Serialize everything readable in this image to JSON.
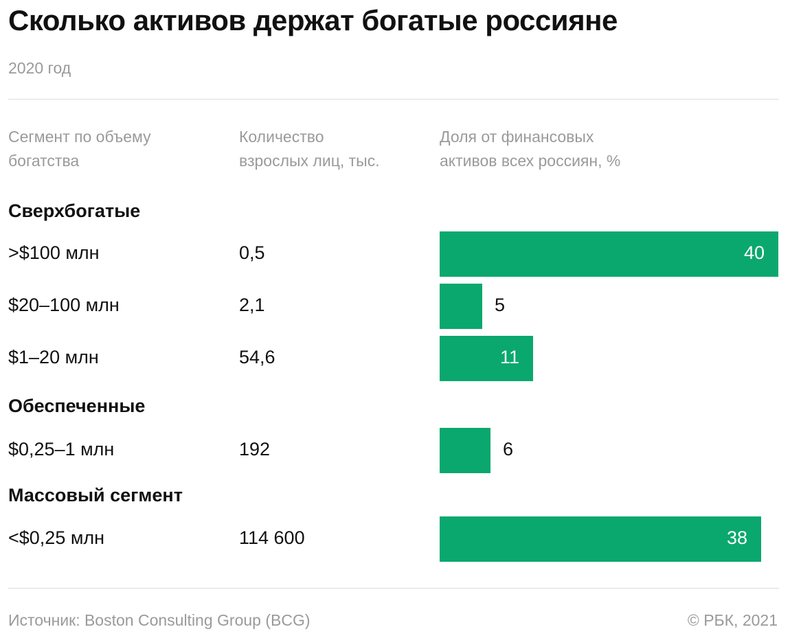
{
  "title": "Сколько активов держат богатые россияне",
  "subtitle": "2020 год",
  "columns": {
    "segment": [
      "Сегмент по объему",
      "богатства"
    ],
    "count": [
      "Количество",
      "взрослых лиц, тыс."
    ],
    "share": [
      "Доля от финансовых",
      "активов всех россиян, %"
    ]
  },
  "groups": [
    "Сверхбогатые",
    "Обеспеченные",
    "Массовый сегмент"
  ],
  "chart_data": {
    "type": "bar",
    "orientation": "horizontal",
    "title": "Сколько активов держат богатые россияне",
    "subtitle": "2020 год",
    "xlabel": "Доля от финансовых активов всех россиян, %",
    "ylabel": "Сегмент по объему богатства",
    "grid": false,
    "xlim": [
      0,
      40
    ],
    "categories": [
      ">$100 млн",
      "$20–100 млн",
      "$1–20 млн",
      "$0,25–1 млн",
      "<$0,25 млн"
    ],
    "group_of_category": [
      "Сверхбогатые",
      "Сверхбогатые",
      "Сверхбогатые",
      "Обеспеченные",
      "Массовый сегмент"
    ],
    "adults_thousands": [
      "0,5",
      "2,1",
      "54,6",
      "192",
      "114 600"
    ],
    "series": [
      {
        "values": [
          40,
          5,
          11,
          6,
          38
        ]
      }
    ],
    "bar_color": "#0aa86e"
  },
  "footer": {
    "source": "Источник: Boston Consulting Group (BCG)",
    "copyright": "© РБК, 2021"
  }
}
